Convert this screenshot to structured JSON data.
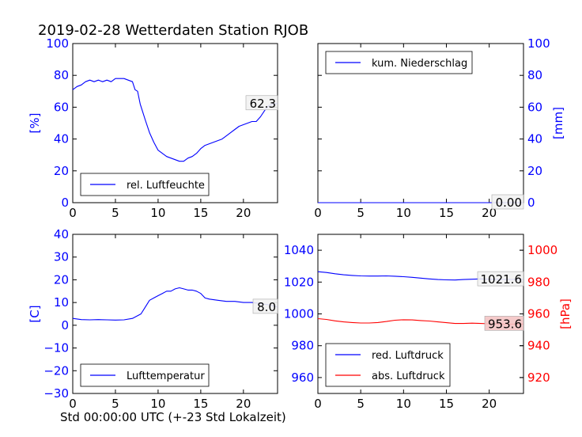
{
  "title": "2019-02-28 Wetterdaten Station RJOB",
  "xlabel": "Std 00:00:00 UTC (+-23 Std Lokalzeit)",
  "colors": {
    "blue": "#0000ff",
    "red": "#ff0000",
    "axis": "#000000"
  },
  "chart_data": [
    {
      "type": "line",
      "ylabel": "[%]",
      "xlim": [
        0,
        24
      ],
      "ylim": [
        0,
        100
      ],
      "x_ticks": [
        0,
        5,
        10,
        15,
        20
      ],
      "y_ticks": [
        0,
        20,
        40,
        60,
        80,
        100
      ],
      "legend_position": "lower-left",
      "series": [
        {
          "name": "rel. Luftfeuchte",
          "color": "#0000ff",
          "x": [
            0,
            0.5,
            1,
            1.5,
            2,
            2.5,
            3,
            3.5,
            4,
            4.5,
            5,
            5.5,
            6,
            6.5,
            7,
            7.3,
            7.6,
            7.9,
            8.2,
            8.5,
            9,
            9.5,
            10,
            10.5,
            11,
            11.5,
            12,
            12.5,
            13,
            13.5,
            14,
            14.5,
            15,
            15.5,
            16,
            16.5,
            17,
            17.5,
            18,
            18.5,
            19,
            19.5,
            20,
            20.5,
            21,
            21.5,
            22,
            22.5,
            23,
            23.5,
            24
          ],
          "y": [
            71,
            73,
            74,
            76,
            77,
            76,
            77,
            76,
            77,
            76,
            78,
            78,
            78,
            77,
            76,
            71,
            70,
            62,
            57,
            52,
            44,
            38,
            33,
            31,
            29,
            28,
            27,
            26,
            26,
            28,
            29,
            31,
            34,
            36,
            37,
            38,
            39,
            40,
            42,
            44,
            46,
            48,
            49,
            50,
            51,
            51,
            54,
            58,
            61,
            62,
            62.3
          ]
        }
      ],
      "last_value_label": "62.3"
    },
    {
      "type": "line",
      "ylabel": "[mm]",
      "xlim": [
        0,
        24
      ],
      "ylim": [
        0,
        100
      ],
      "x_ticks": [
        0,
        5,
        10,
        15,
        20
      ],
      "y_ticks": [
        0,
        20,
        40,
        60,
        80,
        100
      ],
      "y_axis_side": "right",
      "legend_position": "top-left",
      "series": [
        {
          "name": "kum. Niederschlag",
          "color": "#0000ff",
          "x": [
            0,
            24
          ],
          "y": [
            0,
            0
          ]
        }
      ],
      "last_value_label": "0.00"
    },
    {
      "type": "line",
      "ylabel": "[C]",
      "xlim": [
        0,
        24
      ],
      "ylim": [
        -30,
        40
      ],
      "x_ticks": [
        0,
        5,
        10,
        15,
        20
      ],
      "y_ticks": [
        -30,
        -20,
        -10,
        0,
        10,
        20,
        30,
        40
      ],
      "legend_position": "lower-left",
      "series": [
        {
          "name": "Lufttemperatur",
          "color": "#0000ff",
          "x": [
            0,
            1,
            2,
            3,
            4,
            5,
            6,
            7,
            7.5,
            8,
            8.5,
            9,
            9.5,
            10,
            10.5,
            11,
            11.5,
            12,
            12.5,
            13,
            13.5,
            14,
            14.5,
            15,
            15.5,
            16,
            17,
            18,
            19,
            20,
            21,
            22,
            23,
            24
          ],
          "y": [
            3,
            2.5,
            2.4,
            2.5,
            2.4,
            2.3,
            2.4,
            3,
            4,
            5,
            8,
            11,
            12,
            13,
            14,
            15,
            15,
            16,
            16.5,
            16,
            15.5,
            15.5,
            15,
            14,
            12,
            11.5,
            11,
            10.5,
            10.5,
            10,
            10,
            9.5,
            9,
            8.0
          ]
        }
      ],
      "last_value_label": "8.0"
    },
    {
      "type": "line",
      "xlim": [
        0,
        24
      ],
      "ylim_left": [
        950,
        1050
      ],
      "ylim_right": [
        910,
        1010
      ],
      "y_ticks_left": [
        960,
        980,
        1000,
        1020,
        1040
      ],
      "y_ticks_right": [
        920,
        940,
        960,
        980,
        1000
      ],
      "ylabel_right": "[hPa]",
      "x_ticks": [
        0,
        5,
        10,
        15,
        20
      ],
      "legend_position": "lower-left",
      "series": [
        {
          "name": "red. Luftdruck",
          "color": "#0000ff",
          "axis": "left",
          "x": [
            0,
            1,
            2,
            3,
            4,
            5,
            6,
            7,
            8,
            9,
            10,
            11,
            12,
            13,
            14,
            15,
            16,
            17,
            18,
            19,
            20,
            21,
            22,
            23,
            24
          ],
          "y": [
            1026.5,
            1026,
            1025.2,
            1024.6,
            1024.2,
            1023.9,
            1023.8,
            1023.8,
            1023.9,
            1023.7,
            1023.4,
            1023,
            1022.5,
            1022,
            1021.6,
            1021.4,
            1021.3,
            1021.6,
            1021.8,
            1022,
            1021.8,
            1021.7,
            1021.6,
            1021.6,
            1021.6
          ]
        },
        {
          "name": "abs. Luftdruck",
          "color": "#ff0000",
          "axis": "right",
          "x": [
            0,
            1,
            2,
            3,
            4,
            5,
            6,
            7,
            8,
            9,
            10,
            11,
            12,
            13,
            14,
            15,
            16,
            17,
            18,
            19,
            20,
            21,
            22,
            23,
            24
          ],
          "y": [
            957,
            956.5,
            955.6,
            955,
            954.6,
            954.3,
            954.3,
            954.6,
            955.2,
            956,
            956.3,
            956.2,
            955.8,
            955.5,
            955,
            954.5,
            954,
            954,
            954.2,
            954,
            953.8,
            953.7,
            953.6,
            953.6,
            953.6
          ]
        }
      ],
      "last_value_labels": [
        "1021.6",
        "953.6"
      ]
    }
  ]
}
